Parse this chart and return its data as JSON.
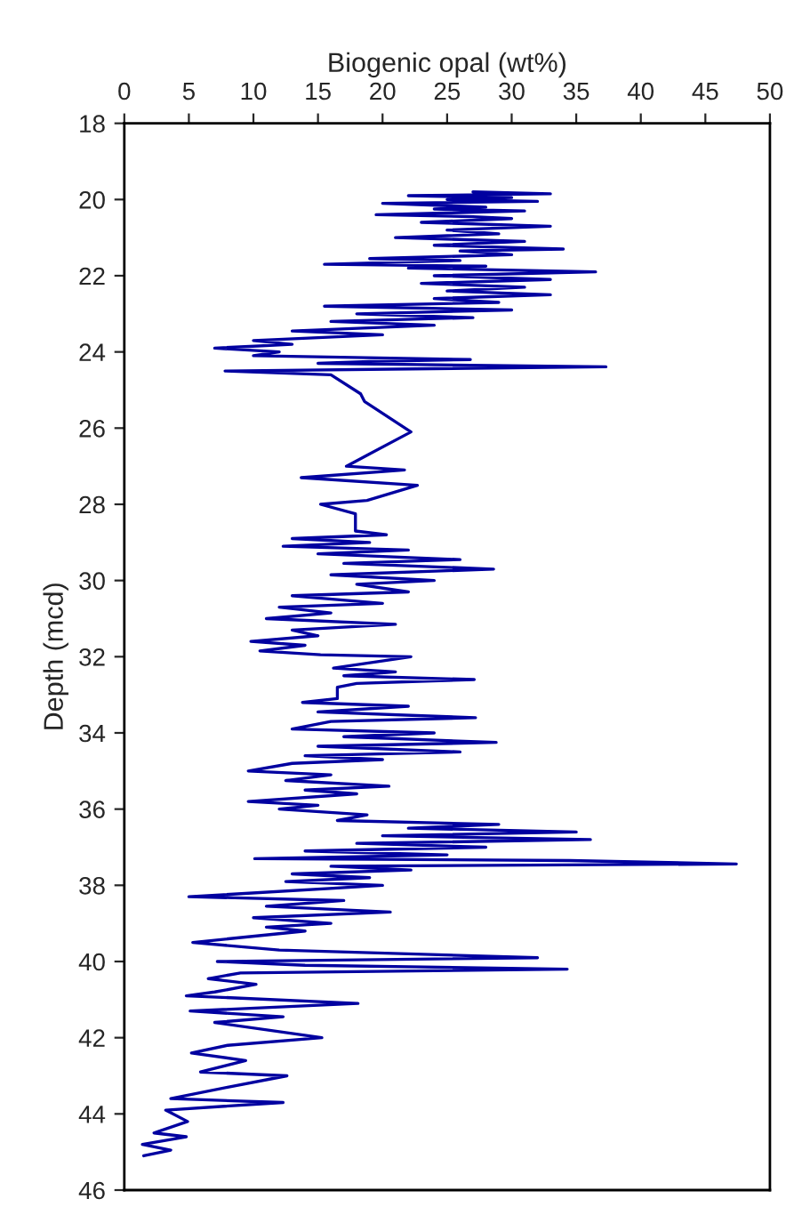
{
  "chart_data": {
    "type": "line",
    "orientation": "horizontal",
    "xlabel": "Biogenic opal (wt%)",
    "ylabel": "Depth (mcd)",
    "xlim": [
      0,
      50
    ],
    "xticks": [
      0,
      5,
      10,
      15,
      20,
      25,
      30,
      35,
      40,
      45,
      50
    ],
    "ylim": [
      46,
      18
    ],
    "yticks": [
      18,
      20,
      22,
      24,
      26,
      28,
      30,
      32,
      34,
      36,
      38,
      40,
      42,
      44,
      46
    ],
    "x": [
      19.8,
      19.85,
      19.9,
      19.95,
      20.0,
      20.05,
      20.1,
      20.2,
      20.25,
      20.3,
      20.4,
      20.45,
      20.5,
      20.6,
      20.7,
      20.8,
      20.9,
      21.0,
      21.1,
      21.2,
      21.3,
      21.35,
      21.45,
      21.55,
      21.6,
      21.7,
      21.75,
      21.8,
      21.9,
      22.0,
      22.1,
      22.2,
      22.3,
      22.4,
      22.5,
      22.6,
      22.7,
      22.8,
      22.9,
      23.0,
      23.1,
      23.2,
      23.3,
      23.45,
      23.55,
      23.7,
      23.8,
      23.9,
      24.0,
      24.1,
      24.2,
      24.25,
      24.3,
      24.39,
      24.5,
      24.6,
      25.1,
      25.3,
      26.1,
      27.0,
      27.1,
      27.3,
      27.5,
      27.9,
      28.0,
      28.25,
      28.7,
      28.8,
      28.9,
      29.0,
      29.1,
      29.2,
      29.3,
      29.45,
      29.55,
      29.7,
      29.85,
      30.0,
      30.1,
      30.3,
      30.4,
      30.6,
      30.7,
      30.85,
      31.0,
      31.15,
      31.3,
      31.45,
      31.6,
      31.7,
      31.85,
      31.95,
      32.0,
      32.3,
      32.4,
      32.5,
      32.6,
      32.7,
      32.8,
      33.1,
      33.2,
      33.3,
      33.45,
      33.6,
      33.7,
      33.9,
      34.0,
      34.1,
      34.25,
      34.35,
      34.5,
      34.6,
      34.7,
      34.8,
      35.0,
      35.1,
      35.25,
      35.4,
      35.5,
      35.6,
      35.8,
      35.9,
      36.0,
      36.15,
      36.3,
      36.4,
      36.5,
      36.6,
      36.7,
      36.8,
      36.9,
      37.0,
      37.1,
      37.2,
      37.3,
      37.35,
      37.44,
      37.5,
      37.6,
      37.7,
      37.8,
      37.9,
      38.0,
      38.3,
      38.4,
      38.55,
      38.7,
      38.85,
      39.0,
      39.1,
      39.2,
      39.5,
      39.7,
      39.9,
      40.0,
      40.1,
      40.2,
      40.3,
      40.45,
      40.6,
      40.8,
      40.9,
      41.1,
      41.3,
      41.45,
      41.6,
      42.0,
      42.2,
      42.4,
      42.6,
      42.9,
      43.0,
      43.3,
      43.6,
      43.7,
      43.9,
      44.2,
      44.5,
      44.6,
      44.8,
      44.95,
      45.1
    ],
    "series": [
      {
        "color": "#0000a0",
        "values": [
          27,
          33,
          22,
          30,
          25,
          32,
          20,
          28,
          24,
          31,
          19.5,
          27,
          30,
          23,
          33,
          25,
          29,
          21,
          31,
          24,
          34,
          26,
          30,
          19,
          26,
          15.5,
          28,
          22,
          36.5,
          24,
          33,
          23,
          31,
          25,
          33,
          24,
          29,
          15.5,
          30,
          18,
          27,
          16,
          24,
          13,
          20,
          10,
          13,
          7,
          12,
          10,
          26.8,
          19,
          15,
          37.3,
          7.8,
          16.0,
          18.3,
          18.6,
          22.2,
          17.2,
          21.7,
          13.7,
          22.7,
          18.8,
          15.2,
          17.9,
          17.9,
          20.3,
          13,
          19,
          12.3,
          22,
          15,
          26,
          17,
          28.6,
          16,
          24,
          18,
          22,
          13,
          20,
          12,
          16,
          11,
          21,
          13,
          15,
          9.8,
          14,
          10.5,
          15.2,
          22.2,
          16.2,
          21,
          17,
          27.1,
          18,
          16.5,
          16.5,
          13.8,
          22,
          15,
          27.2,
          16,
          13,
          24,
          17,
          28.8,
          15,
          26,
          14,
          20,
          13,
          9.6,
          16,
          12.5,
          20.5,
          14,
          18,
          9.6,
          15,
          12,
          18.8,
          16.5,
          29,
          22,
          35,
          20,
          36.1,
          18,
          28,
          14,
          25,
          10.1,
          34.5,
          47.4,
          16,
          22.2,
          13,
          19,
          12.5,
          20,
          5.0,
          17,
          11,
          20.6,
          10,
          16,
          11,
          14,
          5.3,
          12,
          32.0,
          7.2,
          14,
          34.3,
          9,
          6.5,
          10.2,
          7,
          4.8,
          18.1,
          5.1,
          12.3,
          7,
          15.3,
          8,
          5.2,
          9.4,
          5.9,
          12.6,
          8,
          3.6,
          12.3,
          3.2,
          4.9,
          2.3,
          4.8,
          1.4,
          3.6,
          1.5
        ]
      }
    ]
  }
}
